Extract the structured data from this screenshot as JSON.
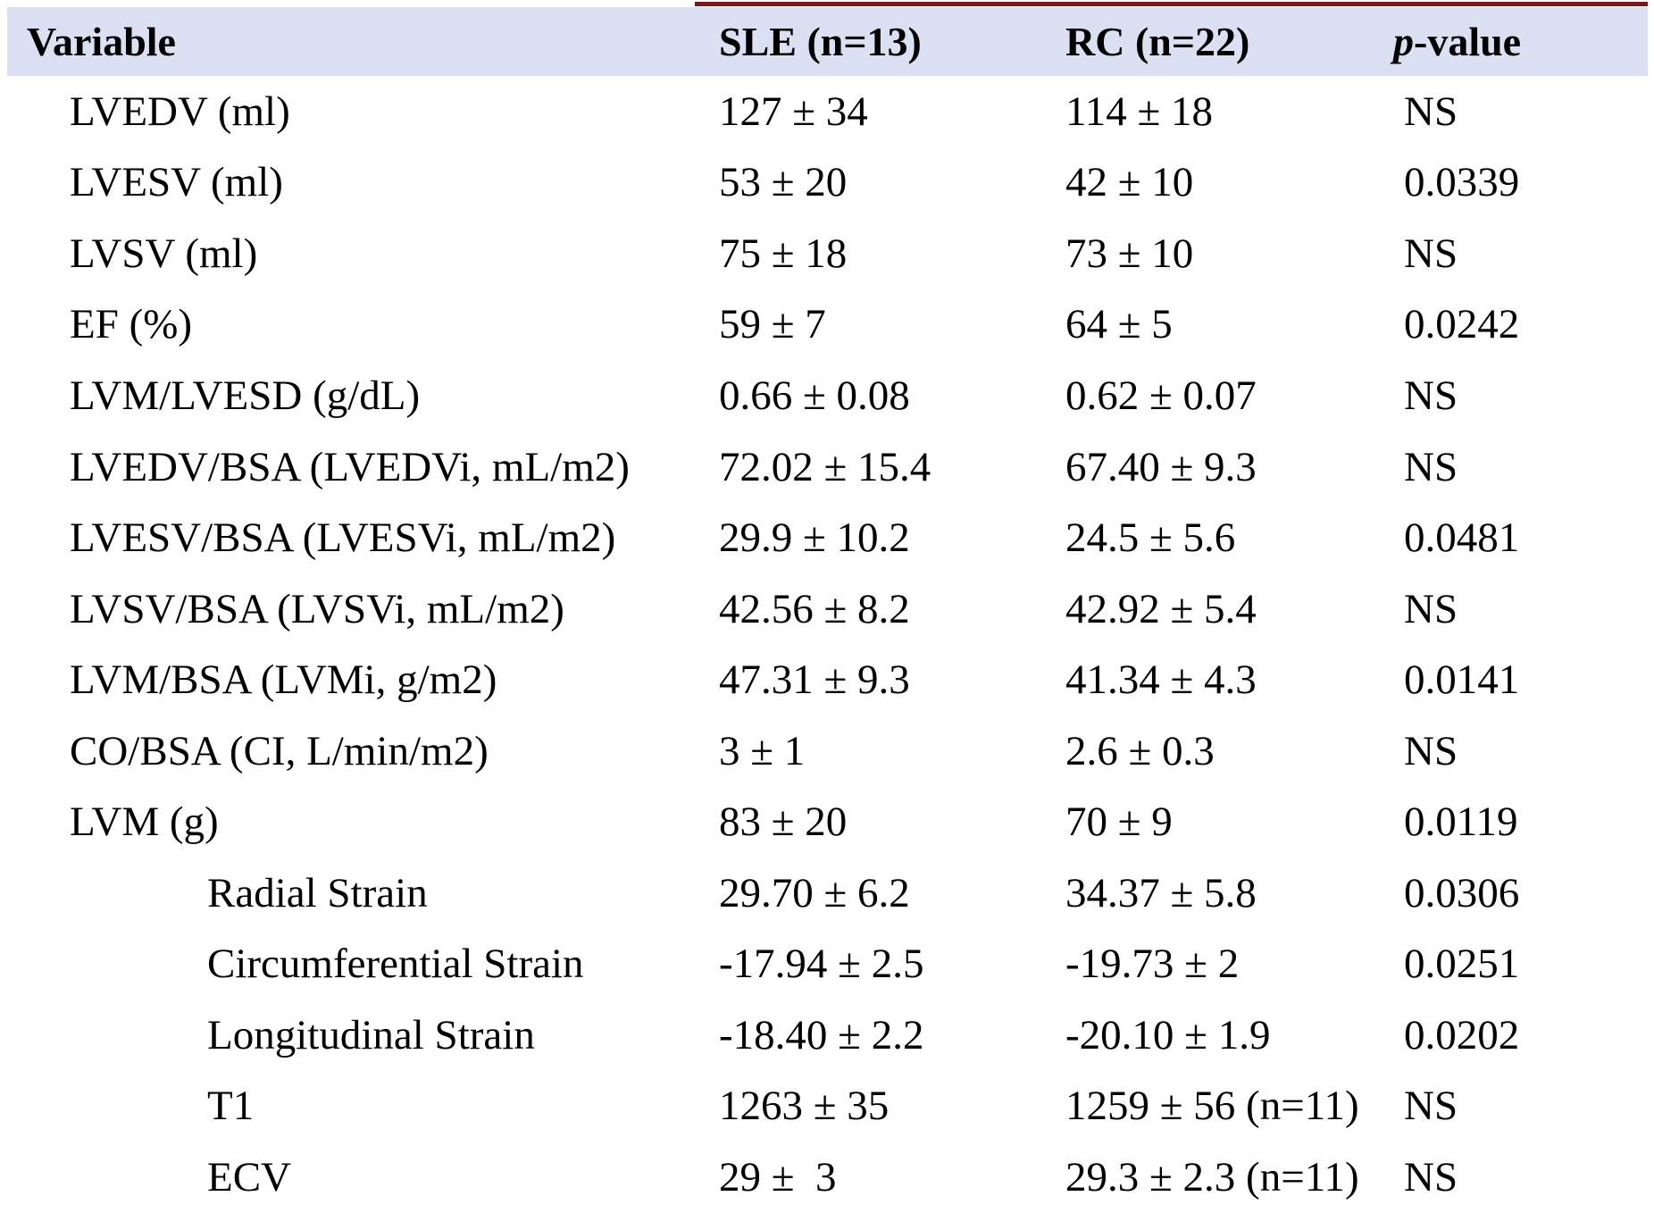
{
  "table": {
    "header": {
      "variable": "Variable",
      "sle": "SLE (n=13)",
      "rc": "RC (n=22)",
      "p_italic": "p",
      "p_rest": "-value"
    },
    "rows": [
      {
        "variable": "LVEDV (ml)",
        "indent": false,
        "sle": "127 ± 34",
        "rc": "114 ± 18",
        "p": "NS"
      },
      {
        "variable": "LVESV (ml)",
        "indent": false,
        "sle": "53 ± 20",
        "rc": "42 ± 10",
        "p": "0.0339"
      },
      {
        "variable": "LVSV (ml)",
        "indent": false,
        "sle": "75 ± 18",
        "rc": "73 ± 10",
        "p": "NS"
      },
      {
        "variable": "EF (%)",
        "indent": false,
        "sle": "59 ± 7",
        "rc": "64 ± 5",
        "p": "0.0242"
      },
      {
        "variable": "LVM/LVESD (g/dL)",
        "indent": false,
        "sle": "0.66 ± 0.08",
        "rc": "0.62 ± 0.07",
        "p": "NS"
      },
      {
        "variable": "LVEDV/BSA (LVEDVi, mL/m2)",
        "indent": false,
        "sle": "72.02 ± 15.4",
        "rc": "67.40 ± 9.3",
        "p": "NS"
      },
      {
        "variable": "LVESV/BSA (LVESVi, mL/m2)",
        "indent": false,
        "sle": "29.9 ± 10.2",
        "rc": "24.5 ± 5.6",
        "p": "0.0481"
      },
      {
        "variable": "LVSV/BSA (LVSVi, mL/m2)",
        "indent": false,
        "sle": "42.56 ± 8.2",
        "rc": "42.92 ± 5.4",
        "p": "NS"
      },
      {
        "variable": "LVM/BSA (LVMi, g/m2)",
        "indent": false,
        "sle": "47.31 ± 9.3",
        "rc": "41.34 ± 4.3",
        "p": "0.0141"
      },
      {
        "variable": "CO/BSA (CI, L/min/m2)",
        "indent": false,
        "sle": "3 ± 1",
        "rc": "2.6 ± 0.3",
        "p": "NS"
      },
      {
        "variable": "LVM (g)",
        "indent": false,
        "sle": "83 ± 20",
        "rc": "70 ± 9",
        "p": "0.0119"
      },
      {
        "variable": "Radial Strain",
        "indent": true,
        "sle": "29.70 ± 6.2",
        "rc": "34.37 ± 5.8",
        "p": "0.0306"
      },
      {
        "variable": "Circumferential Strain",
        "indent": true,
        "sle": "-17.94 ± 2.5",
        "rc": "-19.73 ± 2",
        "p": "0.0251"
      },
      {
        "variable": "Longitudinal Strain",
        "indent": true,
        "sle": "-18.40 ± 2.2",
        "rc": "-20.10 ± 1.9",
        "p": "0.0202"
      },
      {
        "variable": "T1",
        "indent": true,
        "sle": "1263 ± 35",
        "rc": "1259 ± 56 (n=11)",
        "p": "NS"
      },
      {
        "variable": "ECV",
        "indent": true,
        "sle": "29 ±  3",
        "rc": "29.3 ± 2.3 (n=11)",
        "p": "NS"
      }
    ]
  },
  "colors": {
    "header_bg": "#dbe0f2",
    "top_border": "#7a1818",
    "text": "#000000"
  }
}
